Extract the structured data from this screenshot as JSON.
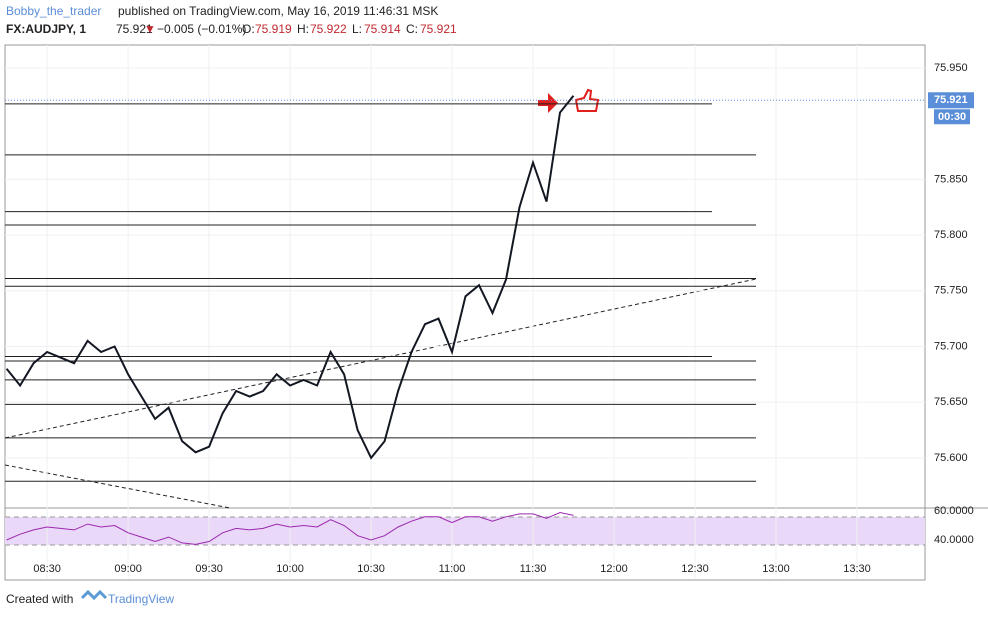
{
  "header": {
    "author": "Bobby_the_trader",
    "published": "published on TradingView.com, May 16, 2019 11:46:31 MSK",
    "symbol": "FX:AUDJPY, 1",
    "last": "75.921",
    "change": "−0.005 (−0.01%)",
    "open_label": "O:",
    "open": "75.919",
    "high_label": "H:",
    "high": "75.922",
    "low_label": "L:",
    "low": "75.914",
    "close_label": "C:",
    "close": "75.921"
  },
  "footer": {
    "created": "Created with",
    "brand": "TradingView"
  },
  "chart_data": {
    "type": "line",
    "x": [
      495,
      500,
      505,
      510,
      515,
      520,
      525,
      530,
      535,
      540,
      545,
      550,
      555,
      560,
      565,
      570,
      575,
      580,
      585,
      590,
      595,
      600,
      605,
      610,
      615,
      620,
      625,
      630,
      635,
      640,
      645,
      650,
      655,
      660,
      665,
      670,
      675,
      680,
      685,
      690,
      695,
      700,
      705
    ],
    "series": [
      {
        "name": "AUDJPY",
        "color": "#131722",
        "values": [
          75.68,
          75.665,
          75.685,
          75.695,
          75.69,
          75.685,
          75.705,
          75.695,
          75.7,
          75.675,
          75.655,
          75.635,
          75.645,
          75.615,
          75.605,
          75.61,
          75.64,
          75.66,
          75.655,
          75.66,
          75.675,
          75.665,
          75.67,
          75.665,
          75.695,
          75.675,
          75.625,
          75.6,
          75.615,
          75.66,
          75.695,
          75.72,
          75.725,
          75.695,
          75.745,
          75.755,
          75.73,
          75.76,
          75.825,
          75.865,
          75.83,
          75.91,
          75.925
        ]
      }
    ],
    "levels": [
      75.9177,
      75.872,
      75.821,
      75.809,
      75.761,
      75.754,
      75.691,
      75.687,
      75.67,
      75.648,
      75.618,
      75.579
    ],
    "last_price": {
      "value": 75.921,
      "label": "75.921"
    },
    "countdown": "00:30",
    "xlim": [
      494.4,
      835.2
    ],
    "xticks": [
      {
        "value": 510,
        "label": "08:30"
      },
      {
        "value": 540,
        "label": "09:00"
      },
      {
        "value": 570,
        "label": "09:30"
      },
      {
        "value": 600,
        "label": "10:00"
      },
      {
        "value": 630,
        "label": "10:30"
      },
      {
        "value": 660,
        "label": "11:00"
      },
      {
        "value": 690,
        "label": "11:30"
      },
      {
        "value": 720,
        "label": "12:00"
      },
      {
        "value": 750,
        "label": "12:30"
      },
      {
        "value": 780,
        "label": "13:00"
      },
      {
        "value": 810,
        "label": "13:30"
      }
    ],
    "ylim": [
      75.555,
      75.9706
    ],
    "yticks": [
      {
        "value": 75.6,
        "label": "75.600"
      },
      {
        "value": 75.65,
        "label": "75.650"
      },
      {
        "value": 75.7,
        "label": "75.700"
      },
      {
        "value": 75.75,
        "label": "75.750"
      },
      {
        "value": 75.8,
        "label": "75.800"
      },
      {
        "value": 75.85,
        "label": "75.850"
      },
      {
        "value": 75.95,
        "label": "75.950"
      }
    ],
    "rsi": {
      "color": "#9c27b0",
      "values": [
        40,
        44,
        47,
        49,
        48,
        47,
        51,
        49,
        50,
        45,
        42,
        39,
        42,
        38,
        37,
        39,
        45,
        48,
        47,
        48,
        51,
        49,
        50,
        49,
        54,
        50,
        43,
        40,
        43,
        49,
        53,
        56,
        56,
        52,
        56,
        56,
        53,
        56,
        58,
        58,
        55,
        59,
        57
      ],
      "ylim": [
        13.8,
        62.07
      ],
      "yticks": [
        {
          "value": 40,
          "label": "40.0000"
        },
        {
          "value": 60,
          "label": "60.0000"
        }
      ]
    }
  }
}
